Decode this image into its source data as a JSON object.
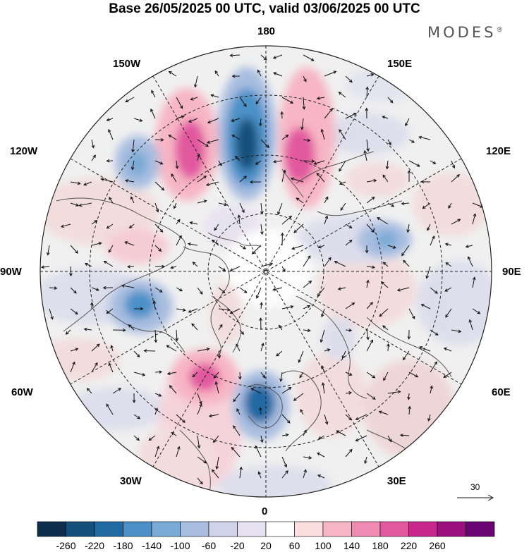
{
  "title": "Base 26/05/2025 00 UTC, valid 03/06/2025 00 UTC",
  "brand": "MODES",
  "brand_mark": "®",
  "lon_labels": {
    "top": "180",
    "top_left": "150W",
    "top_right": "150E",
    "upper_left": "120W",
    "upper_right": "120E",
    "left": "90W",
    "right": "90E",
    "lower_left": "60W",
    "lower_right": "60E",
    "bottom_left": "30W",
    "bottom_right": "30E",
    "bottom": "0"
  },
  "reference_vector": "30",
  "colorbar": {
    "ticks": [
      "-260",
      "-220",
      "-180",
      "-140",
      "-100",
      "-60",
      "-20",
      "20",
      "60",
      "100",
      "140",
      "180",
      "220",
      "260"
    ],
    "colors": [
      "#0d2d4c",
      "#15507a",
      "#2169a3",
      "#4b91c7",
      "#7aaad6",
      "#a8bde0",
      "#cfd3ec",
      "#e6e2f1",
      "#ffffff",
      "#fbdede",
      "#f7b6c4",
      "#f08ab2",
      "#e2589f",
      "#c8288c",
      "#9c0f7f",
      "#6a0573"
    ]
  },
  "map_colors": {
    "background": "#f0f0f0",
    "coast": "#555555",
    "grid": "#222222",
    "arrow": "#111111"
  }
}
